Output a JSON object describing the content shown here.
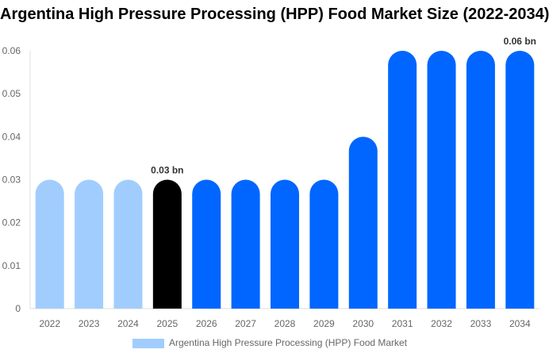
{
  "chart_data": {
    "type": "bar",
    "title": "Argentina High Pressure Processing (HPP) Food Market Size (2022-2034)",
    "categories": [
      "2022",
      "2023",
      "2024",
      "2025",
      "2026",
      "2027",
      "2028",
      "2029",
      "2030",
      "2031",
      "2032",
      "2033",
      "2034"
    ],
    "series": [
      {
        "name": "Argentina High Pressure Processing (HPP) Food Market",
        "values": [
          0.03,
          0.03,
          0.03,
          0.03,
          0.03,
          0.03,
          0.03,
          0.03,
          0.04,
          0.06,
          0.06,
          0.06,
          0.06
        ]
      }
    ],
    "ylim": [
      0,
      0.06
    ],
    "yticks": [
      "0",
      "0.01",
      "0.02",
      "0.03",
      "0.04",
      "0.05",
      "0.06"
    ],
    "data_labels": [
      {
        "category": "2025",
        "text": "0.03 bn"
      },
      {
        "category": "2034",
        "text": "0.06 bn"
      }
    ],
    "colors": {
      "historical": "#a1cdfe",
      "base_year": "#000000",
      "forecast": "#0066ff"
    },
    "bar_color_groups": [
      "historical",
      "historical",
      "historical",
      "base_year",
      "forecast",
      "forecast",
      "forecast",
      "forecast",
      "forecast",
      "forecast",
      "forecast",
      "forecast",
      "forecast"
    ],
    "grid": false,
    "legend": "bottom"
  }
}
